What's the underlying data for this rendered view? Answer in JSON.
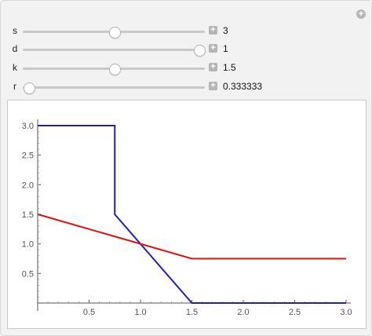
{
  "controls": [
    {
      "name": "s",
      "value_text": "3",
      "value": 3,
      "min": 0,
      "max": 5
    },
    {
      "name": "d",
      "value_text": "1",
      "value": 1,
      "min": 0,
      "max": 1
    },
    {
      "name": "k",
      "value_text": "1.5",
      "value": 1.5,
      "min": 0,
      "max": 3
    },
    {
      "name": "r",
      "value_text": "0.333333",
      "value": 0.333333,
      "min": 0.333333,
      "max": 3
    }
  ],
  "chart_data": {
    "type": "line",
    "title": "",
    "xlabel": "",
    "ylabel": "",
    "xlim": [
      0,
      3.0
    ],
    "ylim": [
      0,
      3.0
    ],
    "x_ticks": [
      "0.5",
      "1.0",
      "1.5",
      "2.0",
      "2.5",
      "3.0"
    ],
    "y_ticks": [
      "0.5",
      "1.0",
      "1.5",
      "2.0",
      "2.5",
      "3.0"
    ],
    "grid": false,
    "series": [
      {
        "color": "#1f1fbf",
        "points": [
          [
            0,
            3.0
          ],
          [
            0.75,
            3.0
          ],
          [
            0.75,
            1.5
          ],
          [
            1.5,
            0
          ],
          [
            3.0,
            0
          ]
        ]
      },
      {
        "color": "#e01010",
        "points": [
          [
            0,
            1.5
          ],
          [
            1.5,
            0.75
          ],
          [
            3.0,
            0.75
          ]
        ]
      }
    ]
  }
}
